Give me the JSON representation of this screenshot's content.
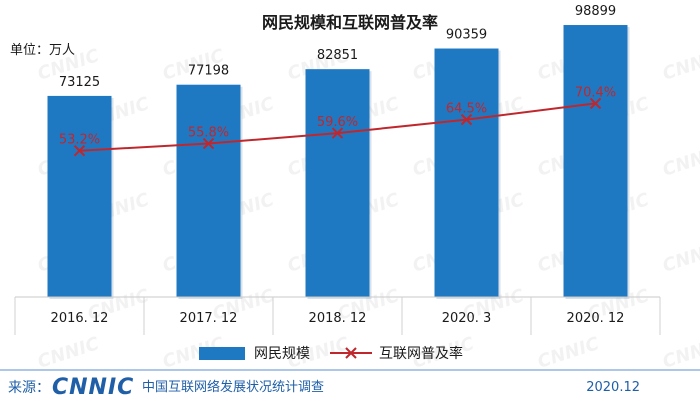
{
  "chart_data": {
    "type": "bar",
    "title": "网民规模和互联网普及率",
    "unit_label": "单位：万人",
    "categories": [
      "2016. 12",
      "2017. 12",
      "2018. 12",
      "2020. 3",
      "2020. 12"
    ],
    "series": [
      {
        "name": "网民规模",
        "type": "bar",
        "values": [
          73125,
          77198,
          82851,
          90359,
          98899
        ],
        "value_labels": [
          "73125",
          "77198",
          "82851",
          "90359",
          "98899"
        ],
        "color": "#1f79c2"
      },
      {
        "name": "互联网普及率",
        "type": "line",
        "values": [
          53.2,
          55.8,
          59.6,
          64.5,
          70.4
        ],
        "value_labels": [
          "53.2%",
          "55.8%",
          "59.6%",
          "64.5%",
          "70.4%"
        ],
        "color": "#c0272d"
      }
    ],
    "ylim": [
      0,
      100000
    ],
    "y2lim": [
      0,
      100
    ],
    "grid": false,
    "legend_position": "bottom"
  },
  "footer": {
    "source_label": "来源：",
    "logo_text": "CNNIC",
    "org_name": "中国互联网络发展状况统计调查",
    "date": "2020.12"
  },
  "colors": {
    "title": "#1a1a1a",
    "bar": "#1f79c2",
    "line": "#c0272d",
    "footer_blue": "#1f5fa8"
  }
}
